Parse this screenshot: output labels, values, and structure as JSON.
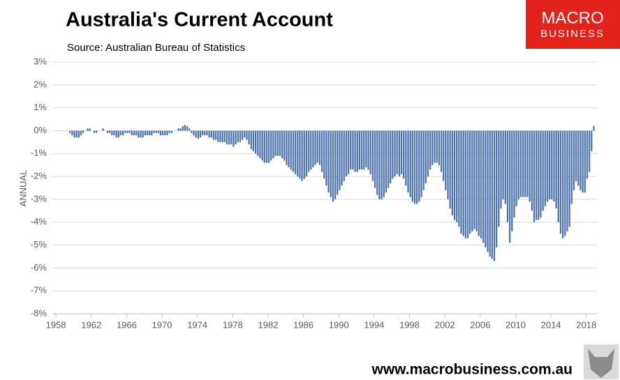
{
  "chart_data": {
    "type": "bar",
    "title": "Australia's Current Account",
    "subtitle": "Source: Australian Bureau of Statistics",
    "y_label": "ANNUAL",
    "logo": {
      "top": "MACRO",
      "bottom": "BUSINESS"
    },
    "footer": "www.macrobusiness.com.au",
    "color": "#4e74ad",
    "grid": true,
    "xlim": [
      1957.6,
      2019.2
    ],
    "xticks": [
      1958,
      1962,
      1966,
      1970,
      1974,
      1978,
      1982,
      1986,
      1990,
      1994,
      1998,
      2002,
      2006,
      2010,
      2014,
      2018
    ],
    "ylim": [
      -8,
      3
    ],
    "yticks": [
      {
        "value": -8,
        "label": "-8%"
      },
      {
        "value": -7,
        "label": "-7%"
      },
      {
        "value": -6,
        "label": "-6%"
      },
      {
        "value": -5,
        "label": "-5%"
      },
      {
        "value": -4,
        "label": "-4%"
      },
      {
        "value": -3,
        "label": "-3%"
      },
      {
        "value": -2,
        "label": "-2%"
      },
      {
        "value": -1,
        "label": "-1%"
      },
      {
        "value": 0,
        "label": "0%"
      },
      {
        "value": 1,
        "label": "1%"
      },
      {
        "value": 2,
        "label": "2%"
      },
      {
        "value": 3,
        "label": "3%"
      }
    ],
    "x": [
      1959.5,
      1959.75,
      1960,
      1960.25,
      1960.5,
      1960.75,
      1961,
      1961.25,
      1961.5,
      1961.75,
      1962,
      1962.25,
      1962.5,
      1962.75,
      1963,
      1963.25,
      1963.5,
      1963.75,
      1964,
      1964.25,
      1964.5,
      1964.75,
      1965,
      1965.25,
      1965.5,
      1965.75,
      1966,
      1966.25,
      1966.5,
      1966.75,
      1967,
      1967.25,
      1967.5,
      1967.75,
      1968,
      1968.25,
      1968.5,
      1968.75,
      1969,
      1969.25,
      1969.5,
      1969.75,
      1970,
      1970.25,
      1970.5,
      1970.75,
      1971,
      1971.25,
      1971.5,
      1971.75,
      1972,
      1972.25,
      1972.5,
      1972.75,
      1973,
      1973.25,
      1973.5,
      1973.75,
      1974,
      1974.25,
      1974.5,
      1974.75,
      1975,
      1975.25,
      1975.5,
      1975.75,
      1976,
      1976.25,
      1976.5,
      1976.75,
      1977,
      1977.25,
      1977.5,
      1977.75,
      1978,
      1978.25,
      1978.5,
      1978.75,
      1979,
      1979.25,
      1979.5,
      1979.75,
      1980,
      1980.25,
      1980.5,
      1980.75,
      1981,
      1981.25,
      1981.5,
      1981.75,
      1982,
      1982.25,
      1982.5,
      1982.75,
      1983,
      1983.25,
      1983.5,
      1983.75,
      1984,
      1984.25,
      1984.5,
      1984.75,
      1985,
      1985.25,
      1985.5,
      1985.75,
      1986,
      1986.25,
      1986.5,
      1986.75,
      1987,
      1987.25,
      1987.5,
      1987.75,
      1988,
      1988.25,
      1988.5,
      1988.75,
      1989,
      1989.25,
      1989.5,
      1989.75,
      1990,
      1990.25,
      1990.5,
      1990.75,
      1991,
      1991.25,
      1991.5,
      1991.75,
      1992,
      1992.25,
      1992.5,
      1992.75,
      1993,
      1993.25,
      1993.5,
      1993.75,
      1994,
      1994.25,
      1994.5,
      1994.75,
      1995,
      1995.25,
      1995.5,
      1995.75,
      1996,
      1996.25,
      1996.5,
      1996.75,
      1997,
      1997.25,
      1997.5,
      1997.75,
      1998,
      1998.25,
      1998.5,
      1998.75,
      1999,
      1999.25,
      1999.5,
      1999.75,
      2000,
      2000.25,
      2000.5,
      2000.75,
      2001,
      2001.25,
      2001.5,
      2001.75,
      2002,
      2002.25,
      2002.5,
      2002.75,
      2003,
      2003.25,
      2003.5,
      2003.75,
      2004,
      2004.25,
      2004.5,
      2004.75,
      2005,
      2005.25,
      2005.5,
      2005.75,
      2006,
      2006.25,
      2006.5,
      2006.75,
      2007,
      2007.25,
      2007.5,
      2007.75,
      2008,
      2008.25,
      2008.5,
      2008.75,
      2009,
      2009.25,
      2009.5,
      2009.75,
      2010,
      2010.25,
      2010.5,
      2010.75,
      2011,
      2011.25,
      2011.5,
      2011.75,
      2012,
      2012.25,
      2012.5,
      2012.75,
      2013,
      2013.25,
      2013.5,
      2013.75,
      2014,
      2014.25,
      2014.5,
      2014.75,
      2015,
      2015.25,
      2015.5,
      2015.75,
      2016,
      2016.25,
      2016.5,
      2016.75,
      2017,
      2017.25,
      2017.5,
      2017.75,
      2018,
      2018.25,
      2018.5,
      2018.75
    ],
    "values": [
      -0.1,
      -0.2,
      -0.3,
      -0.3,
      -0.3,
      -0.2,
      -0.1,
      0.0,
      0.1,
      0.1,
      0.0,
      -0.1,
      -0.1,
      0.0,
      0.0,
      0.1,
      0.0,
      -0.1,
      -0.1,
      -0.2,
      -0.2,
      -0.3,
      -0.3,
      -0.2,
      -0.2,
      -0.1,
      -0.1,
      -0.1,
      -0.2,
      -0.2,
      -0.2,
      -0.3,
      -0.3,
      -0.3,
      -0.2,
      -0.2,
      -0.2,
      -0.2,
      -0.1,
      -0.1,
      -0.1,
      -0.2,
      -0.2,
      -0.2,
      -0.2,
      -0.1,
      -0.1,
      0.0,
      0.0,
      0.1,
      0.1,
      0.2,
      0.25,
      0.2,
      0.1,
      -0.1,
      -0.2,
      -0.3,
      -0.35,
      -0.3,
      -0.2,
      -0.2,
      -0.2,
      -0.3,
      -0.3,
      -0.4,
      -0.4,
      -0.5,
      -0.5,
      -0.5,
      -0.5,
      -0.6,
      -0.6,
      -0.6,
      -0.7,
      -0.6,
      -0.5,
      -0.5,
      -0.4,
      -0.3,
      -0.4,
      -0.6,
      -0.8,
      -0.9,
      -1.0,
      -1.1,
      -1.2,
      -1.3,
      -1.4,
      -1.4,
      -1.4,
      -1.3,
      -1.2,
      -1.1,
      -1.1,
      -1.1,
      -1.2,
      -1.3,
      -1.5,
      -1.6,
      -1.7,
      -1.8,
      -1.9,
      -2.0,
      -2.1,
      -2.2,
      -2.1,
      -2.0,
      -1.8,
      -1.7,
      -1.6,
      -1.5,
      -1.4,
      -1.5,
      -1.8,
      -2.1,
      -2.4,
      -2.7,
      -2.9,
      -3.1,
      -3.0,
      -2.8,
      -2.6,
      -2.4,
      -2.2,
      -2.0,
      -1.9,
      -1.7,
      -1.7,
      -1.8,
      -1.8,
      -1.7,
      -1.7,
      -1.7,
      -1.6,
      -1.7,
      -1.9,
      -2.2,
      -2.5,
      -2.8,
      -3.0,
      -3.0,
      -2.9,
      -2.7,
      -2.5,
      -2.3,
      -2.1,
      -2.0,
      -1.9,
      -2.0,
      -1.9,
      -2.1,
      -2.4,
      -2.7,
      -2.9,
      -3.1,
      -3.2,
      -3.2,
      -3.1,
      -2.9,
      -2.6,
      -2.3,
      -2.0,
      -1.7,
      -1.5,
      -1.4,
      -1.4,
      -1.5,
      -1.8,
      -2.2,
      -2.6,
      -3.0,
      -3.4,
      -3.7,
      -3.9,
      -4.0,
      -4.2,
      -4.5,
      -4.6,
      -4.7,
      -4.7,
      -4.5,
      -4.4,
      -4.3,
      -4.4,
      -4.6,
      -4.7,
      -4.9,
      -5.1,
      -5.3,
      -5.5,
      -5.6,
      -5.7,
      -5.1,
      -4.2,
      -3.4,
      -3.0,
      -3.2,
      -4.0,
      -4.9,
      -4.4,
      -3.8,
      -3.3,
      -3.0,
      -2.9,
      -2.9,
      -2.9,
      -2.9,
      -3.1,
      -3.5,
      -4.0,
      -3.9,
      -3.9,
      -3.8,
      -3.5,
      -3.3,
      -3.1,
      -3.0,
      -3.0,
      -3.1,
      -3.4,
      -4.0,
      -4.5,
      -4.7,
      -4.6,
      -4.4,
      -4.2,
      -3.2,
      -2.6,
      -2.2,
      -2.4,
      -2.6,
      -2.7,
      -2.7,
      -2.1,
      -1.8,
      -0.9,
      0.2
    ]
  }
}
